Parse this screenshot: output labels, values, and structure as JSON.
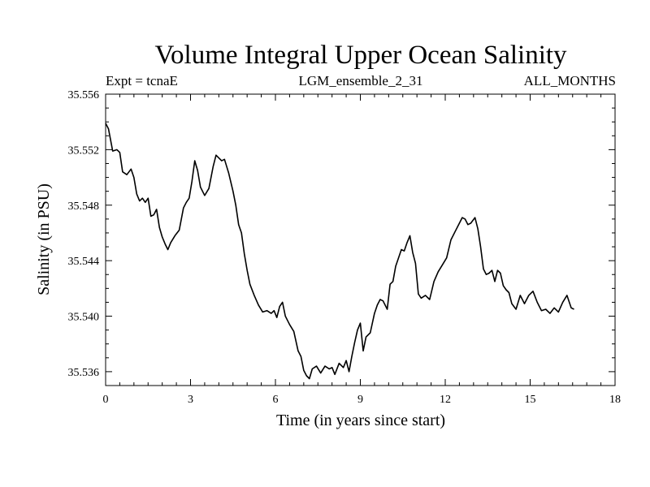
{
  "chart_data": {
    "type": "line",
    "title": "Volume Integral Upper Ocean Salinity",
    "subtitle_left": "Expt = tcnaE",
    "subtitle_center": "LGM_ensemble_2_31",
    "subtitle_right": "ALL_MONTHS",
    "xlabel": "Time (in years since start)",
    "ylabel": "Salinity (in PSU)",
    "xlim": [
      0,
      18
    ],
    "ylim": [
      35.535,
      35.556
    ],
    "xticks": [
      0,
      3,
      6,
      9,
      12,
      15,
      18
    ],
    "xtick_labels": [
      "0",
      "3",
      "6",
      "9",
      "12",
      "15",
      "18"
    ],
    "yticks": [
      35.536,
      35.54,
      35.544,
      35.548,
      35.552,
      35.556
    ],
    "ytick_labels": [
      "35.536",
      "35.540",
      "35.544",
      "35.548",
      "35.552",
      "35.556"
    ],
    "series": [
      {
        "name": "Salinity",
        "color": "#000000",
        "x": [
          0,
          0.1,
          0.25,
          0.4,
          0.5,
          0.6,
          0.75,
          0.9,
          1.0,
          1.1,
          1.2,
          1.3,
          1.4,
          1.5,
          1.6,
          1.7,
          1.8,
          1.9,
          2.0,
          2.1,
          2.2,
          2.3,
          2.45,
          2.6,
          2.75,
          2.85,
          2.95,
          3.05,
          3.15,
          3.25,
          3.35,
          3.5,
          3.65,
          3.8,
          3.9,
          4.0,
          4.1,
          4.2,
          4.35,
          4.5,
          4.6,
          4.7,
          4.8,
          4.9,
          5.0,
          5.1,
          5.25,
          5.4,
          5.55,
          5.7,
          5.85,
          5.95,
          6.05,
          6.15,
          6.25,
          6.35,
          6.5,
          6.65,
          6.8,
          6.9,
          7.0,
          7.1,
          7.2,
          7.3,
          7.45,
          7.6,
          7.75,
          7.9,
          8.0,
          8.1,
          8.25,
          8.4,
          8.5,
          8.6,
          8.7,
          8.8,
          8.9,
          9.0,
          9.1,
          9.2,
          9.35,
          9.5,
          9.6,
          9.7,
          9.8,
          9.95,
          10.05,
          10.15,
          10.25,
          10.35,
          10.45,
          10.55,
          10.65,
          10.75,
          10.85,
          10.95,
          11.05,
          11.15,
          11.3,
          11.45,
          11.6,
          11.75,
          11.9,
          12.05,
          12.2,
          12.35,
          12.5,
          12.6,
          12.7,
          12.8,
          12.9,
          13.05,
          13.15,
          13.25,
          13.35,
          13.45,
          13.55,
          13.65,
          13.75,
          13.85,
          13.95,
          14.05,
          14.15,
          14.25,
          14.35,
          14.5,
          14.65,
          14.8,
          14.95,
          15.1,
          15.25,
          15.4,
          15.55,
          15.7,
          15.85,
          16.0,
          16.15,
          16.3,
          16.45,
          16.55
        ],
        "values": [
          35.5539,
          35.5535,
          35.5519,
          35.552,
          35.5518,
          35.5504,
          35.5502,
          35.5506,
          35.55,
          35.5488,
          35.5483,
          35.5485,
          35.5482,
          35.5485,
          35.5472,
          35.5473,
          35.5477,
          35.5464,
          35.5457,
          35.5452,
          35.5448,
          35.5453,
          35.5458,
          35.5462,
          35.5478,
          35.5482,
          35.5485,
          35.5497,
          35.5512,
          35.5505,
          35.5493,
          35.5487,
          35.5492,
          35.5508,
          35.5516,
          35.5514,
          35.5512,
          35.5513,
          35.5503,
          35.549,
          35.548,
          35.5466,
          35.546,
          35.5445,
          35.5433,
          35.5423,
          35.5415,
          35.5408,
          35.5403,
          35.5404,
          35.5402,
          35.5404,
          35.5399,
          35.5407,
          35.541,
          35.54,
          35.5394,
          35.5389,
          35.5375,
          35.5371,
          35.5361,
          35.5357,
          35.5355,
          35.5362,
          35.5364,
          35.5359,
          35.5364,
          35.5362,
          35.5363,
          35.5358,
          35.5366,
          35.5363,
          35.5368,
          35.536,
          35.5371,
          35.5381,
          35.539,
          35.5395,
          35.5375,
          35.5385,
          35.5388,
          35.5402,
          35.5408,
          35.5412,
          35.5411,
          35.5405,
          35.5423,
          35.5425,
          35.5436,
          35.5442,
          35.5448,
          35.5447,
          35.5453,
          35.5458,
          35.5446,
          35.5438,
          35.5416,
          35.5413,
          35.5415,
          35.5412,
          35.5425,
          35.5432,
          35.5437,
          35.5442,
          35.5455,
          35.5461,
          35.5467,
          35.5471,
          35.547,
          35.5466,
          35.5467,
          35.5471,
          35.5463,
          35.545,
          35.5434,
          35.543,
          35.5431,
          35.5433,
          35.5425,
          35.5433,
          35.5431,
          35.5422,
          35.5419,
          35.5417,
          35.5409,
          35.5405,
          35.5415,
          35.5409,
          35.5415,
          35.5418,
          35.541,
          35.5404,
          35.5405,
          35.5402,
          35.5406,
          35.5403,
          35.541,
          35.5415,
          35.5406,
          35.5405
        ]
      }
    ]
  }
}
